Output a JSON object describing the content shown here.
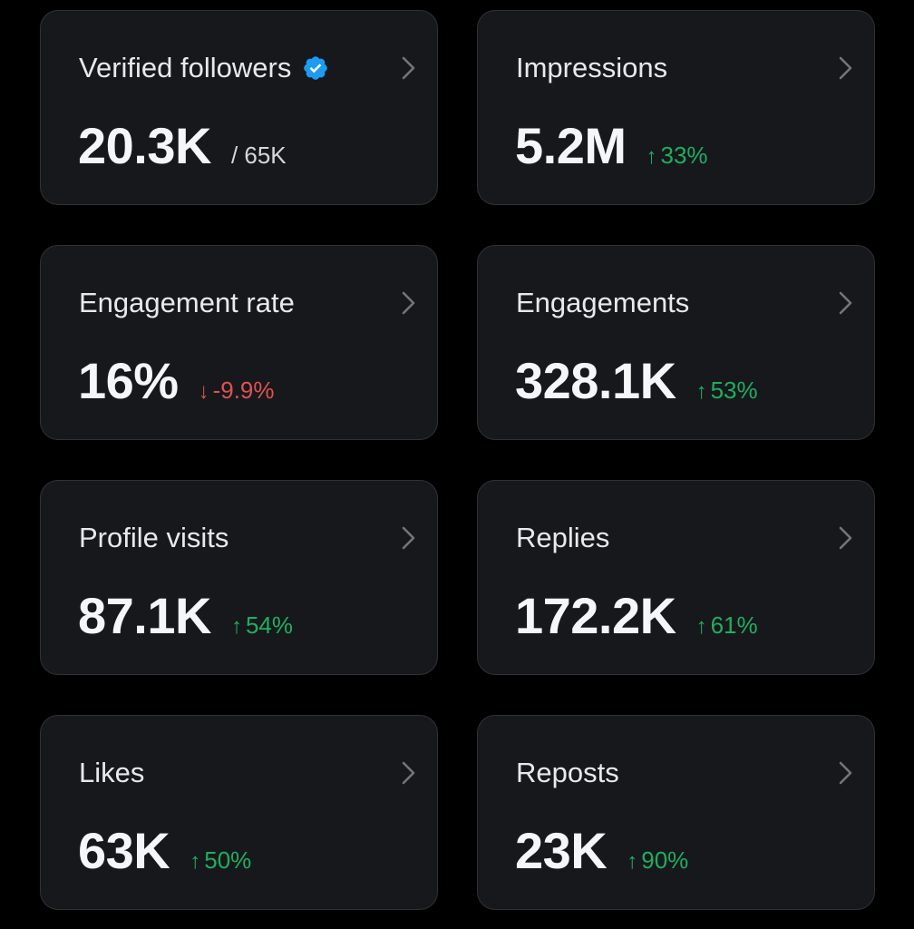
{
  "colors": {
    "background": "#000000",
    "card": "#16181c",
    "card_border": "#2f3336",
    "positive": "#1fae60",
    "negative": "#e0524f",
    "verified_badge": "#1d9bf0"
  },
  "cards": [
    {
      "title": "Verified followers",
      "value": "20.3K",
      "secondary": "/ 65K",
      "icon": "verified-badge-icon"
    },
    {
      "title": "Impressions",
      "value": "5.2M",
      "delta_arrow": "↑",
      "delta": "33%",
      "trend": "up"
    },
    {
      "title": "Engagement rate",
      "value": "16%",
      "delta_arrow": "↓",
      "delta": "-9.9%",
      "trend": "down"
    },
    {
      "title": "Engagements",
      "value": "328.1K",
      "delta_arrow": "↑",
      "delta": "53%",
      "trend": "up"
    },
    {
      "title": "Profile visits",
      "value": "87.1K",
      "delta_arrow": "↑",
      "delta": "54%",
      "trend": "up"
    },
    {
      "title": "Replies",
      "value": "172.2K",
      "delta_arrow": "↑",
      "delta": "61%",
      "trend": "up"
    },
    {
      "title": "Likes",
      "value": "63K",
      "delta_arrow": "↑",
      "delta": "50%",
      "trend": "up"
    },
    {
      "title": "Reposts",
      "value": "23K",
      "delta_arrow": "↑",
      "delta": "90%",
      "trend": "up"
    }
  ]
}
